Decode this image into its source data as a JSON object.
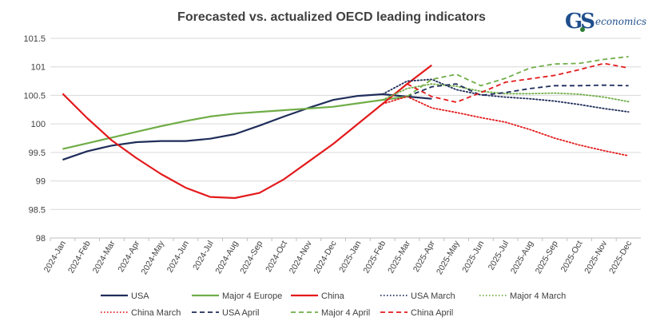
{
  "logo": {
    "brand": "GS",
    "suffix": "economics"
  },
  "colors": {
    "usa": "#1f2d5a",
    "europe": "#70ad47",
    "china": "#e31a1c",
    "grid": "#d9d9d9",
    "axis": "#bfbfbf",
    "text": "#404040",
    "logo": "#1f4e8c"
  },
  "chart_data": {
    "type": "line",
    "title": "Forecasted vs. actualized OECD leading indicators",
    "xlabel": "",
    "ylabel": "",
    "ylim": [
      98,
      101.5
    ],
    "yticks": [
      "98",
      "98.5",
      "99",
      "99.5",
      "100",
      "100.5",
      "101",
      "101.5"
    ],
    "grid": "horizontal",
    "legend_position": "bottom",
    "categories": [
      "2024-Jan",
      "2024-Feb",
      "2024-Mar",
      "2024-Apr",
      "2024-May",
      "2024-Jun",
      "2024-Jul",
      "2024-Aug",
      "2024-Sep",
      "2024-Oct",
      "2024-Nov",
      "2024-Dec",
      "2025-Jan",
      "2025-Feb",
      "2025-Mar",
      "2025-Apr",
      "2025-May",
      "2025-Jun",
      "2025-Jul",
      "2025-Aug",
      "2025-Sep",
      "2025-Oct",
      "2025-Nov",
      "2025-Dec"
    ],
    "series": [
      {
        "name": "USA",
        "color": "#1f2d5a",
        "dash": "solid",
        "values": [
          99.37,
          99.52,
          99.62,
          99.68,
          99.7,
          99.7,
          99.74,
          99.82,
          99.97,
          100.13,
          100.28,
          100.42,
          100.49,
          100.52,
          100.48,
          100.44,
          null,
          null,
          null,
          null,
          null,
          null,
          null,
          null
        ]
      },
      {
        "name": "Major 4 Europe",
        "color": "#70ad47",
        "dash": "solid",
        "values": [
          99.56,
          99.66,
          99.76,
          99.86,
          99.96,
          100.05,
          100.13,
          100.18,
          100.21,
          100.24,
          100.27,
          100.3,
          100.36,
          100.42,
          100.48,
          null,
          null,
          null,
          null,
          null,
          null,
          null,
          null,
          null
        ]
      },
      {
        "name": "China",
        "color": "#e31a1c",
        "dash": "solid",
        "values": [
          100.53,
          100.1,
          99.71,
          99.4,
          99.12,
          98.88,
          98.72,
          98.7,
          98.79,
          99.03,
          99.34,
          99.65,
          100.0,
          100.35,
          100.7,
          101.03,
          null,
          null,
          null,
          null,
          null,
          null,
          null,
          null
        ]
      },
      {
        "name": "USA March",
        "color": "#1f2d5a",
        "dash": "dotted",
        "values": [
          null,
          null,
          null,
          null,
          null,
          null,
          null,
          null,
          null,
          null,
          null,
          null,
          null,
          100.52,
          100.75,
          100.78,
          100.6,
          100.51,
          100.47,
          100.44,
          100.4,
          100.34,
          100.27,
          100.21
        ]
      },
      {
        "name": "Major 4 March",
        "color": "#70ad47",
        "dash": "dotted",
        "values": [
          null,
          null,
          null,
          null,
          null,
          null,
          null,
          null,
          null,
          null,
          null,
          null,
          null,
          100.42,
          100.62,
          100.7,
          100.66,
          100.57,
          100.53,
          100.53,
          100.54,
          100.52,
          100.47,
          100.39
        ]
      },
      {
        "name": "China March",
        "color": "#e31a1c",
        "dash": "dotted",
        "values": [
          null,
          null,
          null,
          null,
          null,
          null,
          null,
          null,
          null,
          null,
          null,
          null,
          null,
          100.35,
          100.48,
          100.28,
          100.2,
          100.11,
          100.03,
          99.9,
          99.75,
          99.63,
          99.53,
          99.44
        ]
      },
      {
        "name": "USA April",
        "color": "#1f2d5a",
        "dash": "dashed",
        "values": [
          null,
          null,
          null,
          null,
          null,
          null,
          null,
          null,
          null,
          null,
          null,
          null,
          null,
          null,
          100.48,
          100.65,
          100.7,
          100.5,
          100.55,
          100.62,
          100.67,
          100.67,
          100.68,
          100.67
        ]
      },
      {
        "name": "Major 4 April",
        "color": "#70ad47",
        "dash": "dashed",
        "values": [
          null,
          null,
          null,
          null,
          null,
          null,
          null,
          null,
          null,
          null,
          null,
          null,
          null,
          null,
          100.48,
          100.78,
          100.87,
          100.67,
          100.8,
          100.98,
          101.05,
          101.06,
          101.13,
          101.18
        ]
      },
      {
        "name": "China April",
        "color": "#e31a1c",
        "dash": "dashed",
        "values": [
          null,
          null,
          null,
          null,
          null,
          null,
          null,
          null,
          null,
          null,
          null,
          null,
          null,
          null,
          100.7,
          100.48,
          100.38,
          100.55,
          100.73,
          100.79,
          100.85,
          100.95,
          101.06,
          100.98
        ]
      }
    ]
  }
}
